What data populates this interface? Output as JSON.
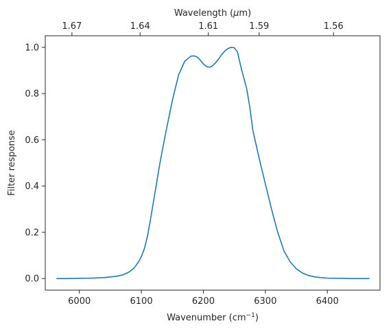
{
  "chart_data": {
    "type": "line",
    "title": "",
    "xlabel": "Wavenumber (cm",
    "xlabel_sup": "−1",
    "xlabel_close": ")",
    "ylabel": "Filter response",
    "top_xlabel_prefix": "Wavelength (",
    "top_xlabel_mu": "μ",
    "top_xlabel_suffix": "m)",
    "xlim": [
      5945,
      6485
    ],
    "ylim": [
      -0.05,
      1.05
    ],
    "grid": false,
    "line_color": "#1f77b4",
    "x_ticks": [
      {
        "value": 6000,
        "label": "6000"
      },
      {
        "value": 6100,
        "label": "6100"
      },
      {
        "value": 6200,
        "label": "6200"
      },
      {
        "value": 6300,
        "label": "6300"
      },
      {
        "value": 6400,
        "label": "6400"
      }
    ],
    "y_ticks": [
      {
        "value": 0.0,
        "label": "0.0"
      },
      {
        "value": 0.2,
        "label": "0.2"
      },
      {
        "value": 0.4,
        "label": "0.4"
      },
      {
        "value": 0.6,
        "label": "0.6"
      },
      {
        "value": 0.8,
        "label": "0.8"
      },
      {
        "value": 1.0,
        "label": "1.0"
      }
    ],
    "top_ticks": [
      {
        "value": 5988,
        "label": "1.67"
      },
      {
        "value": 6098,
        "label": "1.64"
      },
      {
        "value": 6208,
        "label": "1.61"
      },
      {
        "value": 6290,
        "label": "1.59"
      },
      {
        "value": 6410,
        "label": "1.56"
      }
    ],
    "series": [
      {
        "x": [
          5963,
          5980,
          6000,
          6020,
          6040,
          6060,
          6070,
          6080,
          6088,
          6095,
          6100,
          6105,
          6110,
          6115,
          6120,
          6130,
          6140,
          6150,
          6160,
          6170,
          6180,
          6185,
          6190,
          6195,
          6200,
          6205,
          6210,
          6215,
          6220,
          6225,
          6230,
          6235,
          6240,
          6245,
          6250,
          6255,
          6258,
          6262,
          6266,
          6270,
          6275,
          6280,
          6290,
          6300,
          6310,
          6320,
          6330,
          6340,
          6350,
          6360,
          6370,
          6380,
          6390,
          6400,
          6420,
          6440,
          6468
        ],
        "y": [
          0.0,
          0.0,
          0.001,
          0.002,
          0.004,
          0.01,
          0.016,
          0.028,
          0.045,
          0.07,
          0.095,
          0.13,
          0.185,
          0.26,
          0.34,
          0.5,
          0.64,
          0.77,
          0.88,
          0.94,
          0.962,
          0.963,
          0.958,
          0.945,
          0.928,
          0.917,
          0.914,
          0.92,
          0.934,
          0.951,
          0.97,
          0.985,
          0.995,
          1.0,
          0.998,
          0.98,
          0.945,
          0.9,
          0.86,
          0.82,
          0.74,
          0.64,
          0.52,
          0.41,
          0.3,
          0.2,
          0.12,
          0.072,
          0.042,
          0.024,
          0.013,
          0.007,
          0.004,
          0.002,
          0.001,
          0.0,
          0.0
        ]
      }
    ]
  }
}
